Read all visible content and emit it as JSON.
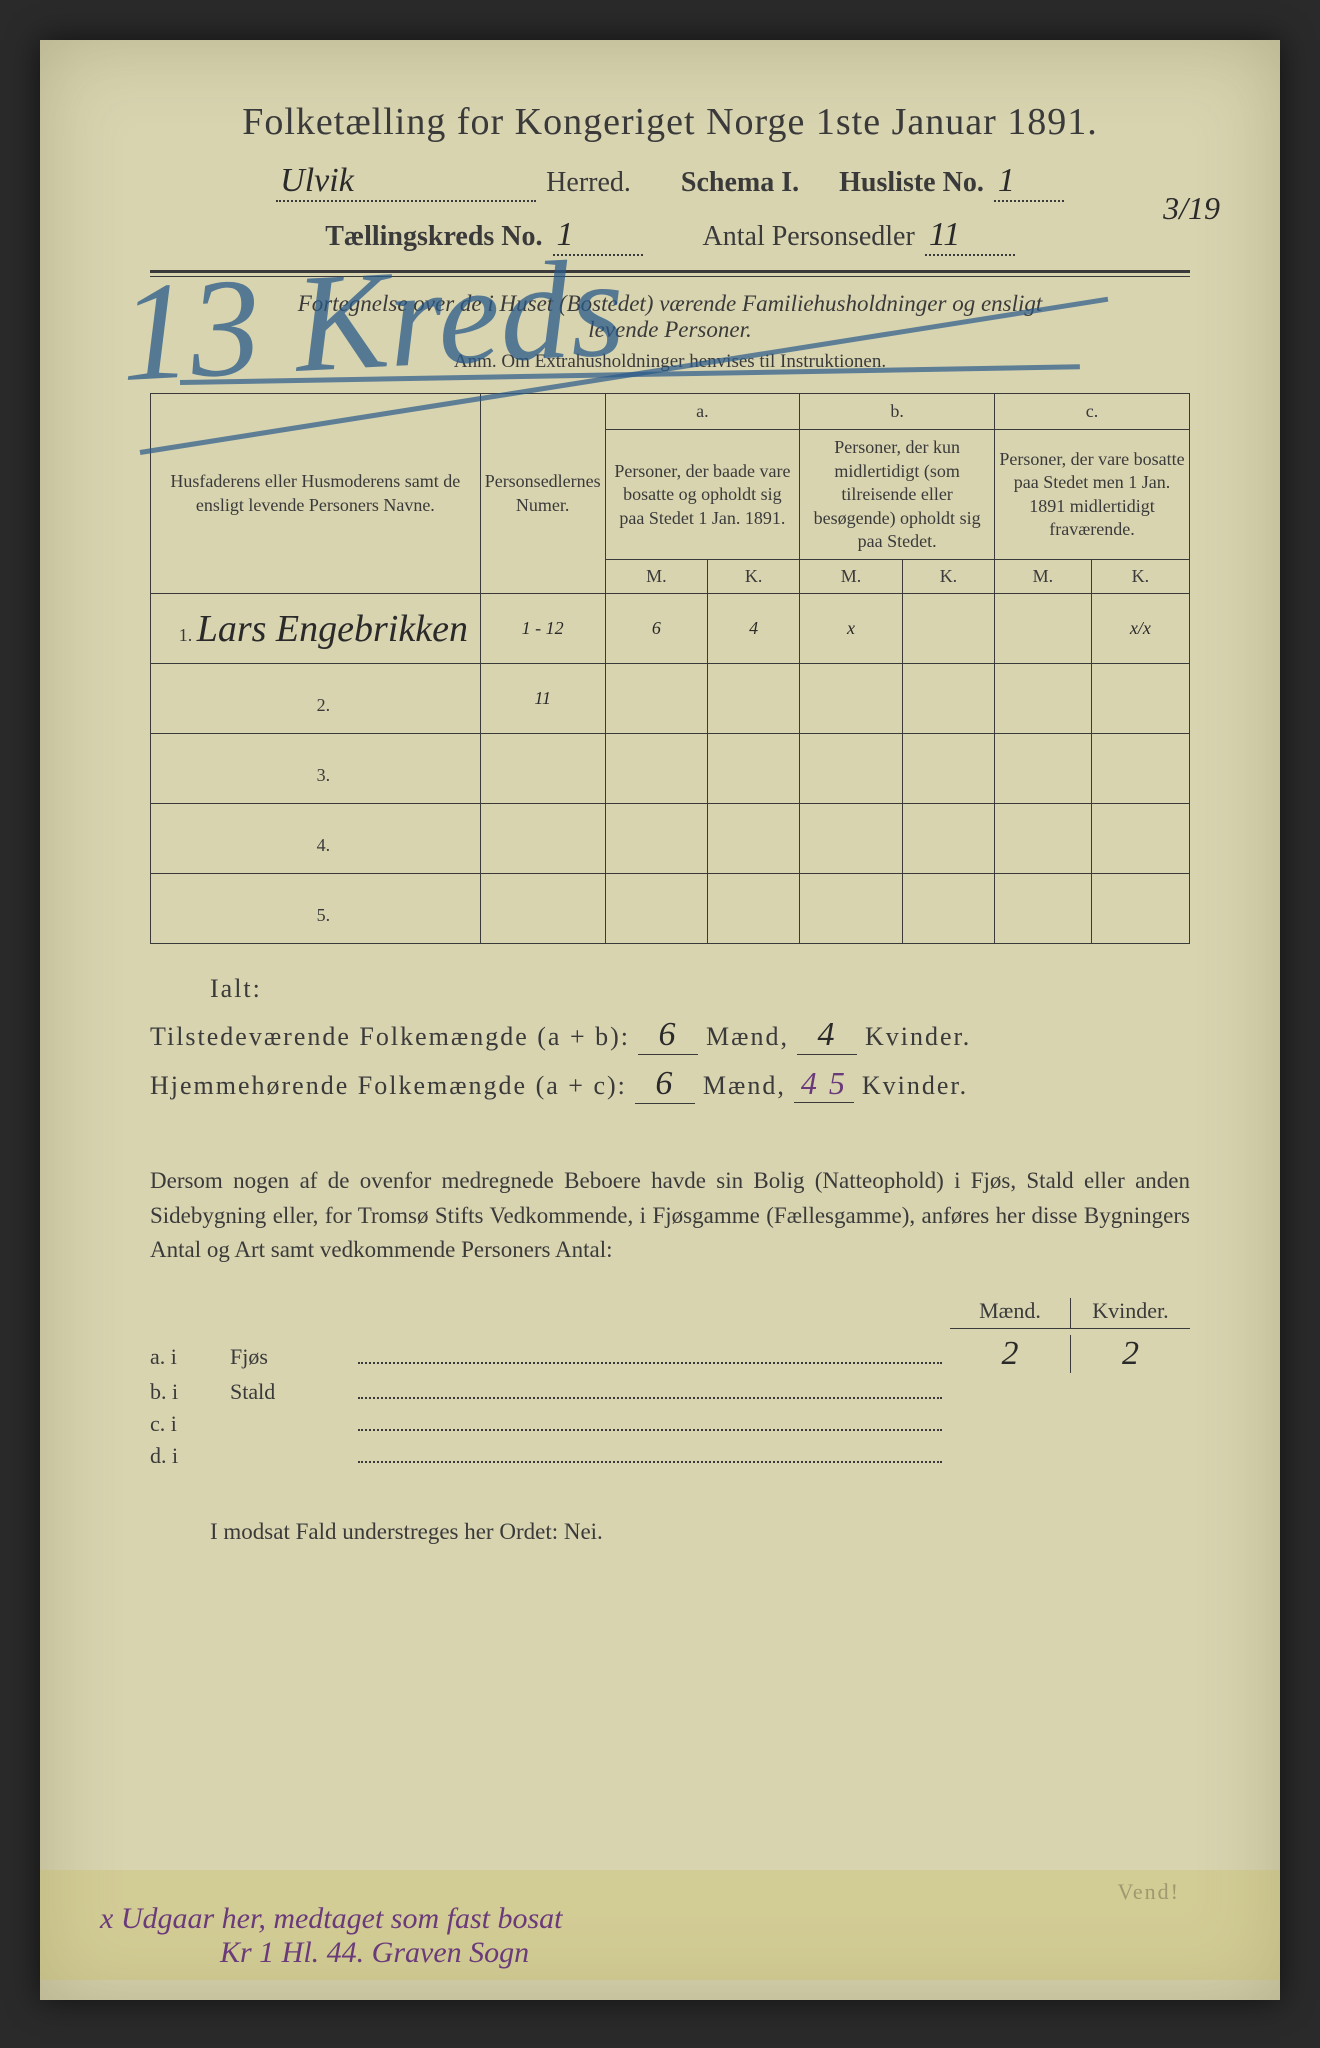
{
  "doc": {
    "title": "Folketælling for Kongeriget Norge 1ste Januar 1891.",
    "herred_value": "Ulvik",
    "herred_label": "Herred.",
    "schema_label": "Schema I.",
    "husliste_label": "Husliste No.",
    "husliste_value": "1",
    "kreds_label": "Tællingskreds No.",
    "kreds_value": "1",
    "sedler_label": "Antal Personsedler",
    "sedler_value": "11",
    "corner_frac": "3/19",
    "subtitle_1": "Fortegnelse over de i Huset (Bostedet) værende Familiehusholdninger og ensligt",
    "subtitle_2": "levende Personer.",
    "anm": "Anm. Om Extrahusholdninger henvises til Instruktionen.",
    "big_annotation": "13 Kreds"
  },
  "table": {
    "col1": "Husfaderens eller Husmoderens samt de ensligt levende Personers Navne.",
    "col2": "Personsedlernes Numer.",
    "col_a_head": "a.",
    "col_a": "Personer, der baade vare bosatte og opholdt sig paa Stedet 1 Jan. 1891.",
    "col_b_head": "b.",
    "col_b": "Personer, der kun midlertidigt (som tilreisende eller besøgende) opholdt sig paa Stedet.",
    "col_c_head": "c.",
    "col_c": "Personer, der vare bosatte paa Stedet men 1 Jan. 1891 midlertidigt fraværende.",
    "m": "M.",
    "k": "K.",
    "rows": [
      {
        "n": "1.",
        "name": "Lars Engebrikken",
        "num": "1 - 12",
        "am": "6",
        "ak": "4",
        "bm": "x",
        "bk": "",
        "cm": "",
        "ck": "x/x"
      },
      {
        "n": "2.",
        "name": "",
        "num": "11",
        "am": "",
        "ak": "",
        "bm": "",
        "bk": "",
        "cm": "",
        "ck": ""
      },
      {
        "n": "3.",
        "name": "",
        "num": "",
        "am": "",
        "ak": "",
        "bm": "",
        "bk": "",
        "cm": "",
        "ck": ""
      },
      {
        "n": "4.",
        "name": "",
        "num": "",
        "am": "",
        "ak": "",
        "bm": "",
        "bk": "",
        "cm": "",
        "ck": ""
      },
      {
        "n": "5.",
        "name": "",
        "num": "",
        "am": "",
        "ak": "",
        "bm": "",
        "bk": "",
        "cm": "",
        "ck": ""
      }
    ]
  },
  "totals": {
    "ialt": "Ialt:",
    "line1_label": "Tilstedeværende Folkemængde (a + b):",
    "line1_m": "6",
    "line1_k": "4",
    "line2_label": "Hjemmehørende Folkemængde (a + c):",
    "line2_m": "6",
    "line2_k": "4 5",
    "maend": "Mænd,",
    "kvinder": "Kvinder."
  },
  "paragraph": "Dersom nogen af de ovenfor medregnede Beboere havde sin Bolig (Natteophold) i Fjøs, Stald eller anden Sidebygning eller, for Tromsø Stifts Vedkommende, i Fjøsgamme (Fællesgamme), anføres her disse Bygningers Antal og Art samt vedkommende Personers Antal:",
  "buildings": {
    "m_head": "Mænd.",
    "k_head": "Kvinder.",
    "rows": [
      {
        "label": "a. i",
        "type": "Fjøs",
        "m": "2",
        "k": "2"
      },
      {
        "label": "b. i",
        "type": "Stald",
        "m": "",
        "k": ""
      },
      {
        "label": "c. i",
        "type": "",
        "m": "",
        "k": ""
      },
      {
        "label": "d. i",
        "type": "",
        "m": "",
        "k": ""
      }
    ]
  },
  "nei_line": "I modsat Fald understreges her Ordet: Nei.",
  "vend": "Vend!",
  "bottom_note_1": "x Udgaar her, medtaget som fast bosat",
  "bottom_note_2": "Kr 1  Hl. 44.  Graven Sogn",
  "colors": {
    "paper": "#d8d4b0",
    "ink": "#3a3a3a",
    "blue_pencil": "#2a5a8a",
    "purple_ink": "#6a3a7a"
  }
}
